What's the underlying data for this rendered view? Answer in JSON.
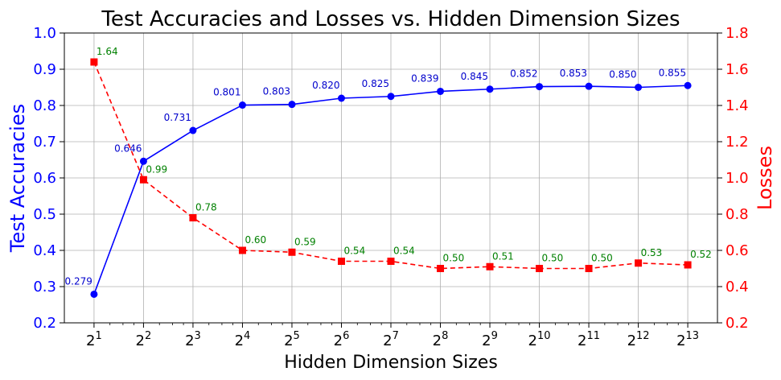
{
  "chart_data": {
    "type": "line",
    "title": "Test Accuracies and Losses vs. Hidden Dimension Sizes",
    "xlabel": "Hidden Dimension Sizes",
    "ylabel_left": "Test Accuracies",
    "ylabel_right": "Losses",
    "x_scale": "log2",
    "x": [
      2,
      4,
      8,
      16,
      32,
      64,
      128,
      256,
      512,
      1024,
      2048,
      4096,
      8192
    ],
    "x_tick_bases": [
      "2",
      "2",
      "2",
      "2",
      "2",
      "2",
      "2",
      "2",
      "2",
      "2",
      "2",
      "2",
      "2"
    ],
    "x_tick_exponents": [
      "1",
      "2",
      "3",
      "4",
      "5",
      "6",
      "7",
      "8",
      "9",
      "10",
      "11",
      "12",
      "13"
    ],
    "ylim_left": [
      0.2,
      1.0
    ],
    "ylim_right": [
      0.2,
      1.8
    ],
    "yticks_left": [
      "0.2",
      "0.3",
      "0.4",
      "0.5",
      "0.6",
      "0.7",
      "0.8",
      "0.9",
      "1.0"
    ],
    "yticks_right": [
      "0.2",
      "0.4",
      "0.6",
      "0.8",
      "1.0",
      "1.2",
      "1.4",
      "1.6",
      "1.8"
    ],
    "grid": true,
    "series": [
      {
        "axis": "left",
        "color": "#0000ff",
        "marker": "circle",
        "linestyle": "solid",
        "values": [
          0.279,
          0.646,
          0.731,
          0.801,
          0.803,
          0.82,
          0.825,
          0.839,
          0.845,
          0.852,
          0.853,
          0.85,
          0.855
        ],
        "labels": [
          "0.279",
          "0.646",
          "0.731",
          "0.801",
          "0.803",
          "0.820",
          "0.825",
          "0.839",
          "0.845",
          "0.852",
          "0.853",
          "0.850",
          "0.855"
        ]
      },
      {
        "axis": "right",
        "color": "#ff0000",
        "marker": "square",
        "linestyle": "dashed",
        "values": [
          1.64,
          0.99,
          0.78,
          0.6,
          0.59,
          0.54,
          0.54,
          0.5,
          0.51,
          0.5,
          0.5,
          0.53,
          0.52
        ],
        "labels": [
          "1.64",
          "0.99",
          "0.78",
          "0.60",
          "0.59",
          "0.54",
          "0.54",
          "0.50",
          "0.51",
          "0.50",
          "0.50",
          "0.53",
          "0.52"
        ]
      }
    ]
  }
}
